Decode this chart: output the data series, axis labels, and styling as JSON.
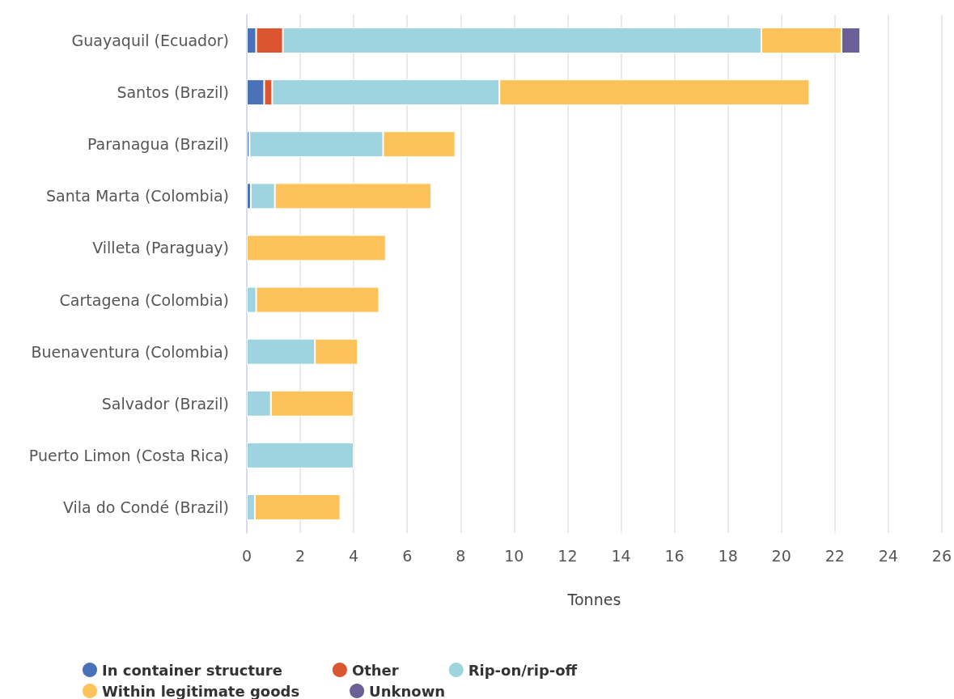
{
  "chart_data": {
    "type": "bar",
    "orientation": "horizontal",
    "stacked": true,
    "xlabel": "Tonnes",
    "categories": [
      "Guayaquil (Ecuador)",
      "Santos (Brazil)",
      "Paranagua (Brazil)",
      "Santa Marta (Colombia)",
      "Villeta (Paraguay)",
      "Cartagena (Colombia)",
      "Buenaventura (Colombia)",
      "Salvador (Brazil)",
      "Puerto Limon (Costa Rica)",
      "Vila do Condé (Brazil)"
    ],
    "series": [
      {
        "name": "In container structure",
        "color": "#4a72b8",
        "values": [
          0.35,
          0.65,
          0.1,
          0.15,
          null,
          null,
          null,
          null,
          null,
          null
        ]
      },
      {
        "name": "Other",
        "color": "#db5531",
        "values": [
          1.0,
          0.3,
          null,
          null,
          null,
          null,
          null,
          null,
          null,
          null
        ]
      },
      {
        "name": "Rip-on/rip-off",
        "color": "#9dd4df",
        "values": [
          17.9,
          8.5,
          5.0,
          0.9,
          null,
          0.35,
          2.55,
          0.9,
          4.0,
          0.3
        ]
      },
      {
        "name": "Within legitimate goods",
        "color": "#fdc35a",
        "values": [
          3.0,
          11.6,
          2.7,
          5.85,
          5.2,
          4.6,
          1.6,
          3.1,
          null,
          3.2
        ]
      },
      {
        "name": "Unknown",
        "color": "#6a5f96",
        "values": [
          0.7,
          null,
          null,
          null,
          null,
          null,
          null,
          null,
          null,
          null
        ]
      }
    ],
    "xlim": [
      0,
      26
    ],
    "xticks": [
      0,
      2,
      4,
      6,
      8,
      10,
      12,
      14,
      16,
      18,
      20,
      22,
      24,
      26
    ],
    "grid": "x",
    "legend": "bottom"
  }
}
